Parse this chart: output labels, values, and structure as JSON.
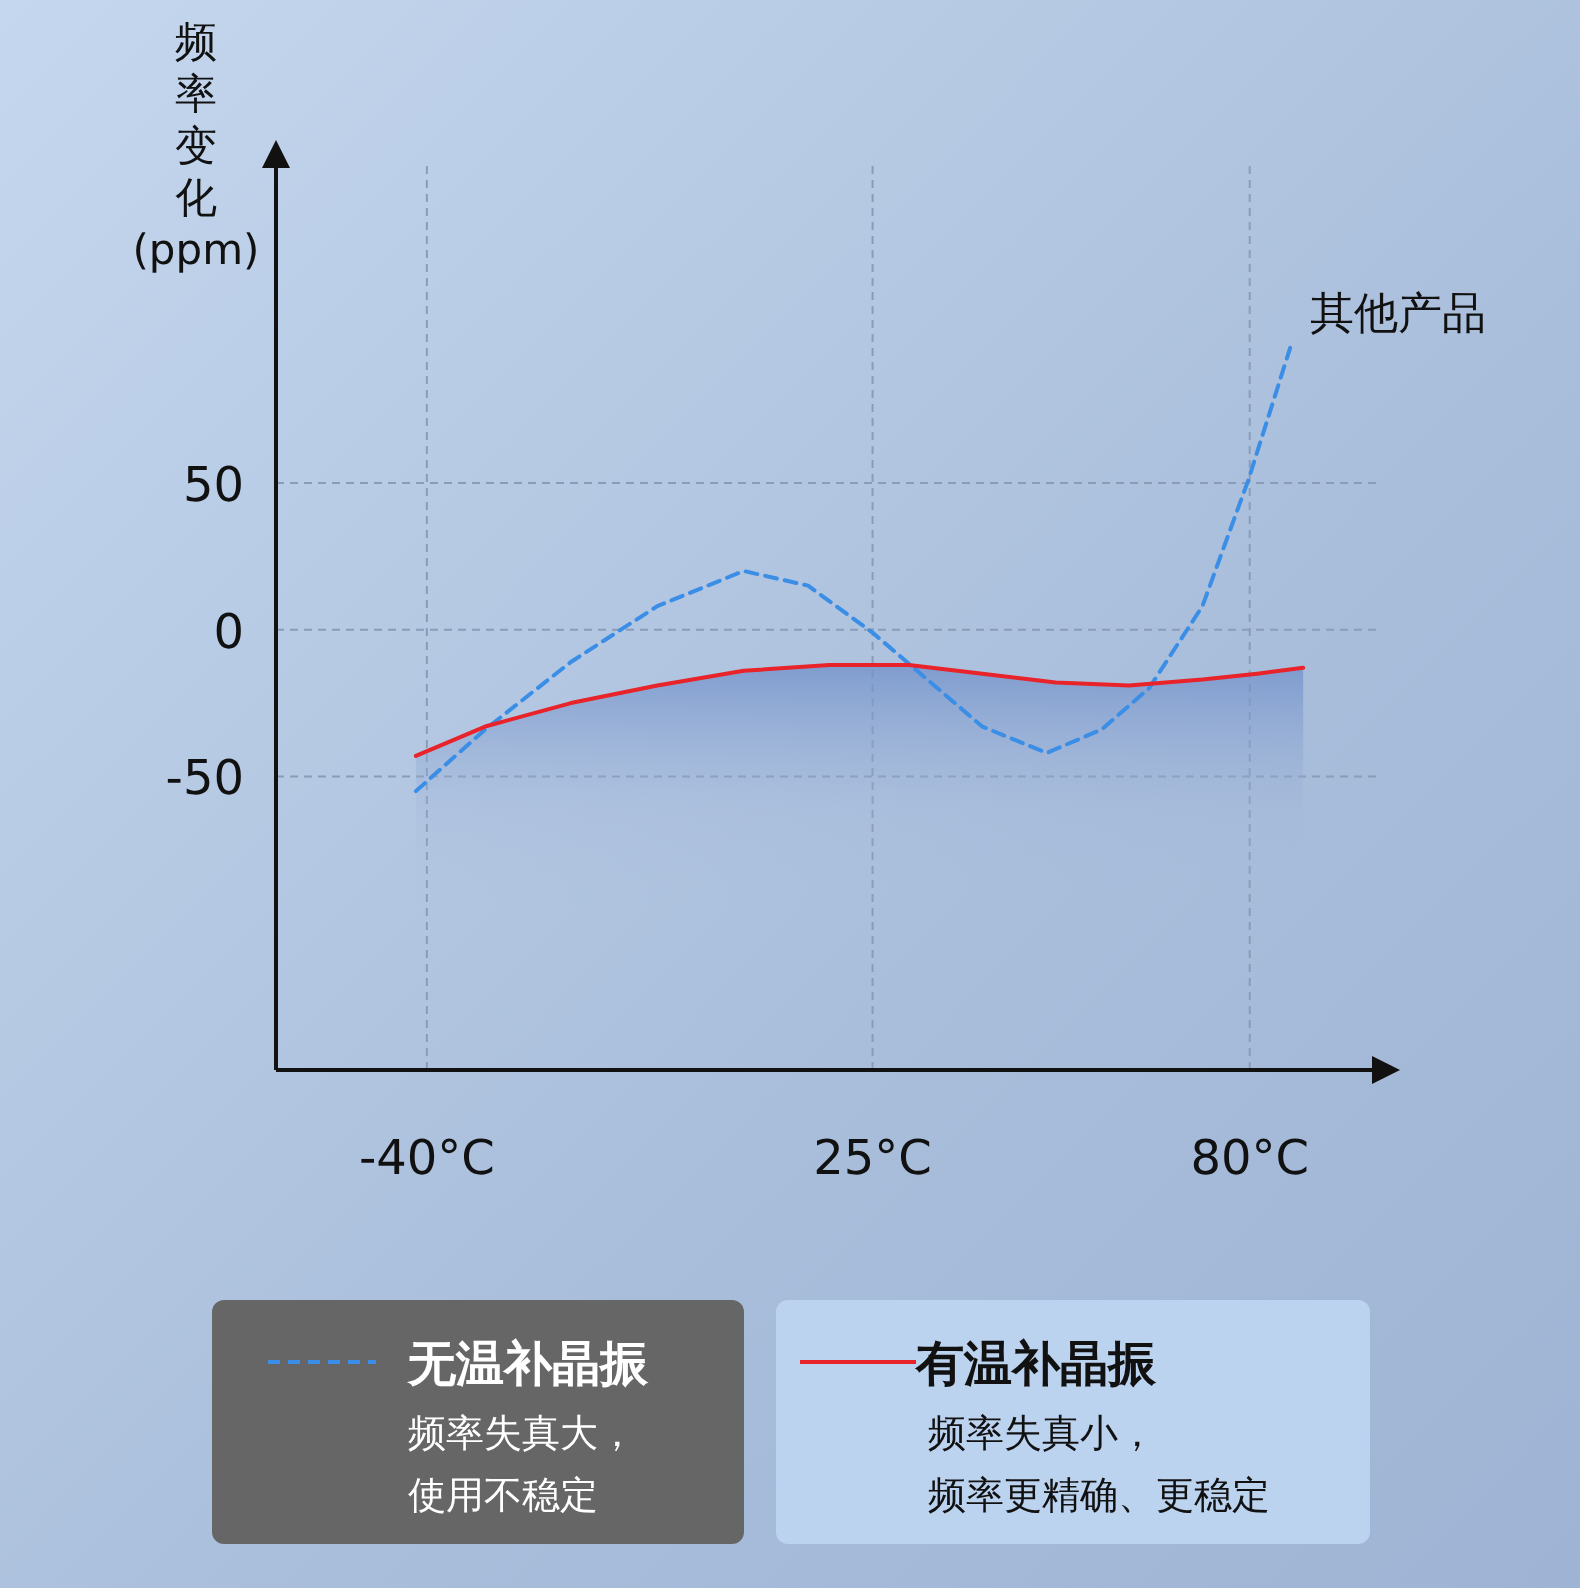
{
  "chart_data": {
    "type": "line",
    "ylabel": "频率变化(ppm)",
    "xlim": [
      -62,
      99
    ],
    "ylim": [
      -150,
      160
    ],
    "xticks": [
      {
        "value": -40,
        "label": "-40°C"
      },
      {
        "value": 25,
        "label": "25°C"
      },
      {
        "value": 80,
        "label": "80°C"
      }
    ],
    "yticks": [
      50,
      0,
      -50
    ],
    "grid": true,
    "legend": "bottom",
    "series": [
      {
        "name": "无温补晶振",
        "color": "#3a8ee6",
        "line_style": "dashed",
        "x": [
          -41.6,
          -31.5,
          -19,
          -6.4,
          6.2,
          15.6,
          25,
          33,
          41,
          50.4,
          58.4,
          65.3,
          73.1,
          79.8,
          85.9
        ],
        "values": [
          -55,
          -34,
          -11,
          8,
          20,
          15,
          -1,
          -17,
          -33,
          -42,
          -34,
          -20,
          8,
          51,
          96
        ]
      },
      {
        "type": "line",
        "name": "有温补晶振",
        "color": "#e8232a",
        "line_style": "solid",
        "x": [
          -41.6,
          -31.5,
          -19,
          -6.4,
          6.2,
          18.7,
          30.3,
          41,
          51.7,
          62.4,
          73.1,
          81.1,
          87.8
        ],
        "values": [
          -43,
          -33,
          -25,
          -19,
          -14,
          -12,
          -12,
          -15,
          -18,
          -19,
          -17,
          -15,
          -13
        ]
      }
    ],
    "annotations": [
      {
        "text": "其他产品",
        "x": 85.9,
        "y": 96
      },
      "频率失真大，",
      "使用不稳定",
      "频率失真小，",
      "频率更精确、更稳定"
    ]
  }
}
